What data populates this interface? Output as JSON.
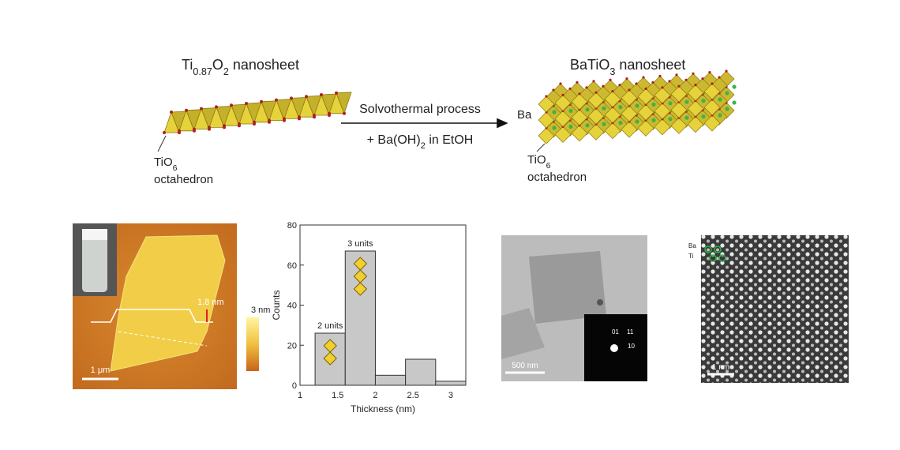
{
  "schematic": {
    "precursor_label": [
      "Ti",
      "0.87",
      "O",
      "2",
      " nanosheet"
    ],
    "product_label": [
      "BaTiO",
      "3",
      " nanosheet"
    ],
    "process_line1": "Solvothermal process",
    "process_line2": [
      "+ Ba(OH)",
      "2",
      " in EtOH"
    ],
    "ion_label": "Ba",
    "precursor_unit": [
      "TiO",
      "6"
    ],
    "precursor_unit_name": "octahedron",
    "product_unit": [
      "TiO",
      "6"
    ],
    "product_unit_name": "octahedron"
  },
  "afm": {
    "step_height": "1.8 nm",
    "colorbar_max": "3 nm",
    "scale_bar": "1 μm"
  },
  "chart_data": {
    "type": "histogram",
    "bins": [
      1.2,
      1.6,
      2.0,
      2.4,
      2.8,
      3.2
    ],
    "counts": [
      26,
      67,
      5,
      13,
      2
    ],
    "annotations": [
      "2 units",
      "3 units"
    ],
    "xlabel": "Thickness (nm)",
    "ylabel": "Counts",
    "xlim": [
      1,
      3.2
    ],
    "ylim": [
      0,
      80
    ],
    "xticks": [
      1,
      1.5,
      2,
      2.5,
      3
    ],
    "yticks": [
      0,
      20,
      40,
      60,
      80
    ],
    "color": "#c8c8c8"
  },
  "tem": {
    "scale_bar": "500 nm",
    "diffraction_spots": [
      "01",
      "11",
      "10"
    ]
  },
  "stem": {
    "atom_labels": [
      "Ba",
      "Ti"
    ],
    "scale_bar": "1 nm"
  }
}
